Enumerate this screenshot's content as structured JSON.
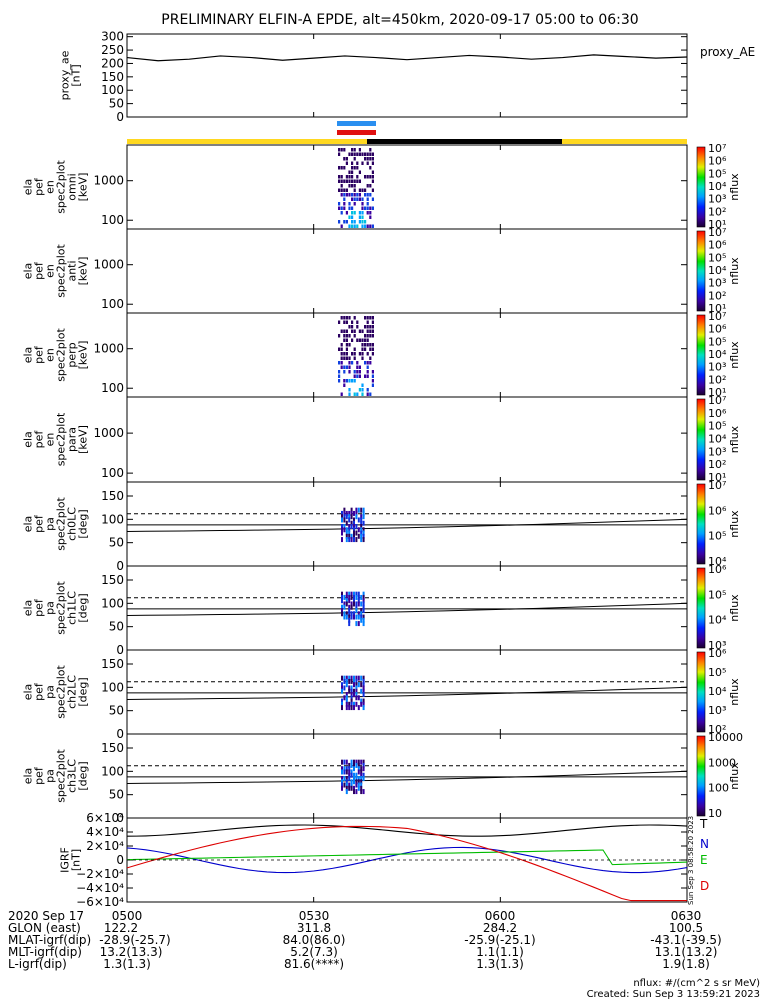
{
  "title": "PRELIMINARY ELFIN-A EPDE, alt=450km, 2020-09-17 05:00 to 06:30",
  "chart_data": [
    {
      "panel": "proxy_ae",
      "type": "line",
      "ylabel_lines": [
        "proxy_ae",
        "[nT]"
      ],
      "yticks": [
        "0",
        "50",
        "100",
        "150",
        "200",
        "250",
        "300"
      ],
      "ylim": [
        0,
        310
      ],
      "legend": "proxy_AE",
      "series": [
        {
          "x_min": [
            0,
            5,
            10,
            15,
            20,
            25,
            30,
            35,
            40,
            45,
            50,
            55,
            60,
            65,
            70,
            75,
            80,
            85,
            90
          ],
          "y": [
            222,
            210,
            216,
            228,
            222,
            212,
            220,
            228,
            222,
            214,
            222,
            230,
            224,
            216,
            222,
            232,
            226,
            220,
            224
          ]
        }
      ]
    },
    {
      "panel": "ela_pef_en_spec2plot_omni",
      "type": "heatmap",
      "ylabel_lines": [
        "ela",
        "pef",
        "en",
        "spec2plot",
        "omni",
        "[keV]"
      ],
      "yticks": [
        "100",
        "1000"
      ],
      "yscale": "log",
      "colorbar": {
        "label": "nflux",
        "ticks": [
          "10¹",
          "10²",
          "10³",
          "10⁴",
          "10⁵",
          "10⁶",
          "10⁷"
        ]
      }
    },
    {
      "panel": "ela_pef_en_spec2plot_anti",
      "type": "heatmap",
      "ylabel_lines": [
        "ela",
        "pef",
        "en",
        "spec2plot",
        "anti",
        "[keV]"
      ],
      "yticks": [
        "100",
        "1000"
      ],
      "yscale": "log",
      "colorbar": {
        "label": "nflux",
        "ticks": [
          "10¹",
          "10²",
          "10³",
          "10⁴",
          "10⁵",
          "10⁶",
          "10⁷"
        ]
      }
    },
    {
      "panel": "ela_pef_en_spec2plot_perp",
      "type": "heatmap",
      "ylabel_lines": [
        "ela",
        "pef",
        "en",
        "spec2plot",
        "perp",
        "[keV]"
      ],
      "yticks": [
        "100",
        "1000"
      ],
      "yscale": "log",
      "colorbar": {
        "label": "nflux",
        "ticks": [
          "10¹",
          "10²",
          "10³",
          "10⁴",
          "10⁵",
          "10⁶",
          "10⁷"
        ]
      }
    },
    {
      "panel": "ela_pef_en_spec2plot_para",
      "type": "heatmap",
      "ylabel_lines": [
        "ela",
        "pef",
        "en",
        "spec2plot",
        "para",
        "[keV]"
      ],
      "yticks": [
        "100",
        "1000"
      ],
      "yscale": "log",
      "colorbar": {
        "label": "nflux",
        "ticks": [
          "10¹",
          "10²",
          "10³",
          "10⁴",
          "10⁵",
          "10⁶",
          "10⁷"
        ]
      }
    },
    {
      "panel": "ela_pef_pa_spec2plot_ch0LC",
      "type": "heatmap",
      "ylabel_lines": [
        "ela",
        "pef",
        "pa",
        "spec2plot",
        "ch0LC",
        "[deg]"
      ],
      "yticks": [
        "0",
        "50",
        "100",
        "150"
      ],
      "ylim": [
        0,
        180
      ],
      "colorbar": {
        "label": "nflux",
        "ticks": [
          "10⁴",
          "10⁵",
          "10⁶",
          "10⁷"
        ]
      }
    },
    {
      "panel": "ela_pef_pa_spec2plot_ch1LC",
      "type": "heatmap",
      "ylabel_lines": [
        "ela",
        "pef",
        "pa",
        "spec2plot",
        "ch1LC",
        "[deg]"
      ],
      "yticks": [
        "0",
        "50",
        "100",
        "150"
      ],
      "ylim": [
        0,
        180
      ],
      "colorbar": {
        "label": "nflux",
        "ticks": [
          "10³",
          "10⁴",
          "10⁵",
          "10⁶"
        ]
      }
    },
    {
      "panel": "ela_pef_pa_spec2plot_ch2LC",
      "type": "heatmap",
      "ylabel_lines": [
        "ela",
        "pef",
        "pa",
        "spec2plot",
        "ch2LC",
        "[deg]"
      ],
      "yticks": [
        "0",
        "50",
        "100",
        "150"
      ],
      "ylim": [
        0,
        180
      ],
      "colorbar": {
        "label": "nflux",
        "ticks": [
          "10²",
          "10³",
          "10⁴",
          "10⁵",
          "10⁶"
        ]
      }
    },
    {
      "panel": "ela_pef_pa_spec2plot_ch3LC",
      "type": "heatmap",
      "ylabel_lines": [
        "ela",
        "pef",
        "pa",
        "spec2plot",
        "ch3LC",
        "[deg]"
      ],
      "yticks": [
        "0",
        "50",
        "100",
        "150"
      ],
      "ylim": [
        0,
        180
      ],
      "colorbar": {
        "label": "nflux",
        "ticks": [
          "10",
          "100",
          "1000",
          "10000"
        ]
      }
    },
    {
      "panel": "IGRF",
      "type": "line",
      "ylabel_lines": [
        "IGRF",
        "[nT]"
      ],
      "yticks": [
        "−6×10⁴",
        "−4×10⁴",
        "−2×10⁴",
        "0",
        "2×10⁴",
        "4×10⁴",
        "6×10⁴"
      ],
      "ylim": [
        -60000,
        60000
      ],
      "legend": [
        "T",
        "N",
        "E",
        "D"
      ],
      "colors": {
        "T": "#000000",
        "N": "#0000cc",
        "E": "#00bb00",
        "D": "#dd0000"
      },
      "side_stamp": "Sun Sep  3 08:58:20 2023"
    }
  ],
  "xaxis": {
    "labels": [
      "2020 Sep 17",
      "GLON (east)",
      "MLAT-igrf(dip)",
      "MLT-igrf(dip)",
      "L-igrf(dip)"
    ],
    "columns": [
      [
        "0500",
        "122.2",
        "-28.9(-25.7)",
        "13.2(13.3)",
        "1.3(1.3)"
      ],
      [
        "0530",
        "311.8",
        "84.0(86.0)",
        "5.2(7.3)",
        "81.6(****)"
      ],
      [
        "0600",
        "284.2",
        "-25.9(-25.1)",
        "1.1(1.1)",
        "1.3(1.3)"
      ],
      [
        "0630",
        "100.5",
        "-43.1(-39.5)",
        "13.1(13.2)",
        "1.9(1.8)"
      ]
    ]
  },
  "footer": {
    "units": "nflux: #/(cm^2 s sr MeV)",
    "created": "Created: Sun Sep  3 13:59:21 2023"
  }
}
